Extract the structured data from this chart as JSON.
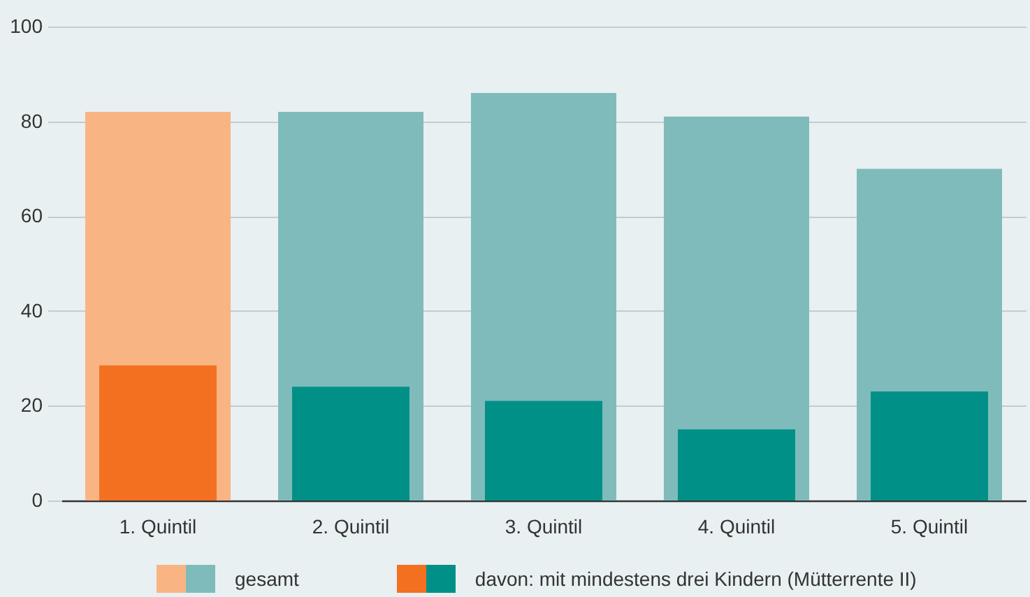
{
  "chart_data": {
    "type": "bar",
    "categories": [
      "1. Quintil",
      "2. Quintil",
      "3. Quintil",
      "4. Quintil",
      "5. Quintil"
    ],
    "series": [
      {
        "name": "gesamt",
        "colors": [
          "#f9b483",
          "#7fbbbb",
          "#7fbbbb",
          "#7fbbbb",
          "#7fbbbb"
        ],
        "values": [
          82,
          82,
          86,
          81,
          70
        ]
      },
      {
        "name": "davon: mit mindestens drei Kindern (Mütterrente II)",
        "colors": [
          "#f37021",
          "#009087",
          "#009087",
          "#009087",
          "#009087"
        ],
        "values": [
          28.5,
          24,
          21,
          15,
          23
        ]
      }
    ],
    "ylim": [
      0,
      100
    ],
    "yticks": [
      0,
      20,
      40,
      60,
      80,
      100
    ],
    "grid": "y",
    "legend": "bottom"
  }
}
